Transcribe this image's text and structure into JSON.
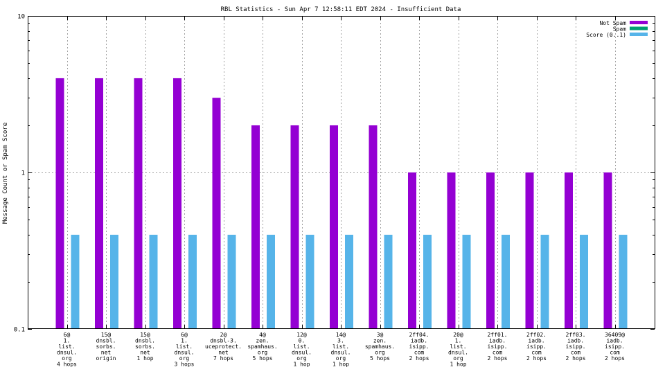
{
  "chart_data": {
    "type": "bar",
    "title": "RBL Statistics - Sun Apr  7 12:58:11 EDT 2024 - Insufficient Data",
    "ylabel": "Message Count or Spam Score",
    "xlabel": "",
    "yscale": "log",
    "ylim": [
      0.1,
      10
    ],
    "yticks": [
      {
        "value": 10,
        "label": "10"
      },
      {
        "value": 1,
        "label": "1"
      },
      {
        "value": 0.1,
        "label": "0.1"
      }
    ],
    "grid": true,
    "legend_position": "top-right",
    "categories": [
      [
        "6@",
        "1.",
        "list.",
        "dnsul.",
        "org",
        "4 hops"
      ],
      [
        "15@",
        "dnsbl.",
        "sorbs.",
        "net",
        "origin"
      ],
      [
        "15@",
        "dnsbl.",
        "sorbs.",
        "net",
        "1 hop"
      ],
      [
        "6@",
        "1.",
        "list.",
        "dnsul.",
        "org",
        "3 hops"
      ],
      [
        "2@",
        "dnsbl-3.",
        "uceprotect.",
        "net",
        "7 hops"
      ],
      [
        "4@",
        "zen.",
        "spamhaus.",
        "org",
        "5 hops"
      ],
      [
        "12@",
        "0.",
        "list.",
        "dnsul.",
        "org",
        "1 hop"
      ],
      [
        "14@",
        "3.",
        "list.",
        "dnsul.",
        "org",
        "1 hop"
      ],
      [
        "3@",
        "zen.",
        "spamhaus.",
        "org",
        "5 hops"
      ],
      [
        "2ff04.",
        "iadb.",
        "isipp.",
        "com",
        "2 hops"
      ],
      [
        "20@",
        "1.",
        "list.",
        "dnsul.",
        "org",
        "1 hop"
      ],
      [
        "2ff01.",
        "iadb.",
        "isipp.",
        "com",
        "2 hops"
      ],
      [
        "2ff02.",
        "iadb.",
        "isipp.",
        "com",
        "2 hops"
      ],
      [
        "2ff03.",
        "iadb.",
        "isipp.",
        "com",
        "2 hops"
      ],
      [
        "36409@",
        "iadb.",
        "isipp.",
        "com",
        "2 hops"
      ]
    ],
    "series": [
      {
        "name": "Not Spam",
        "color": "#9400d3",
        "values": [
          4,
          4,
          4,
          4,
          3,
          2,
          2,
          2,
          2,
          1,
          1,
          1,
          1,
          1,
          1
        ]
      },
      {
        "name": "Spam",
        "color": "#009e73",
        "values": [
          0,
          0,
          0,
          0,
          0,
          0,
          0,
          0,
          0,
          0,
          0,
          0,
          0,
          0,
          0
        ]
      },
      {
        "name": "Score (0..1)",
        "color": "#56b4e9",
        "values": [
          0.4,
          0.4,
          0.4,
          0.4,
          0.4,
          0.4,
          0.4,
          0.4,
          0.4,
          0.4,
          0.4,
          0.4,
          0.4,
          0.4,
          0.4
        ]
      }
    ]
  }
}
